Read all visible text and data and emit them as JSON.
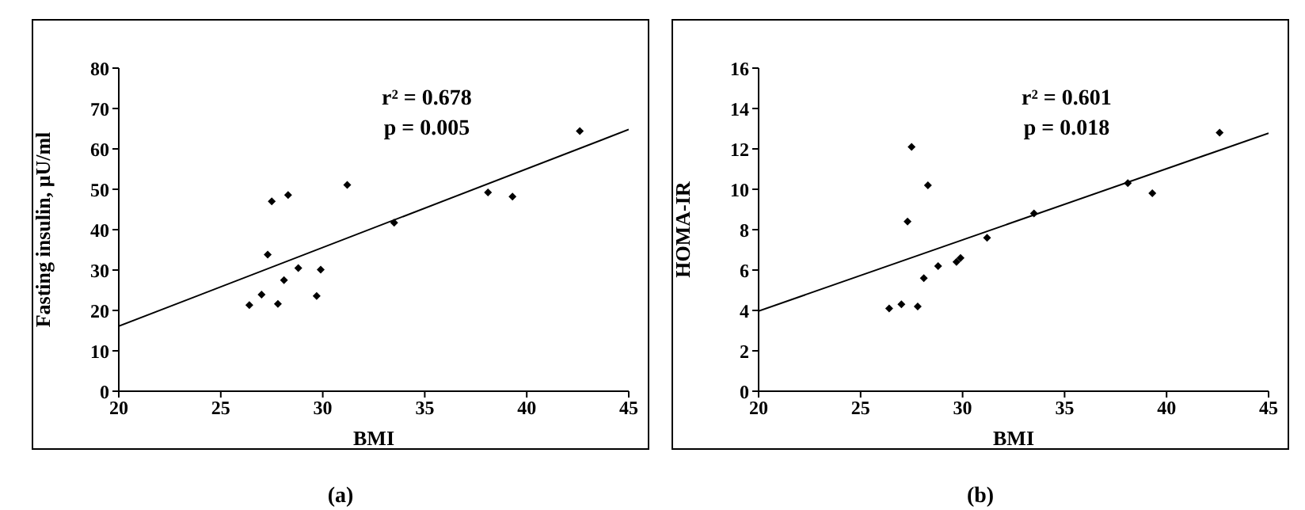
{
  "chart_data": [
    {
      "type": "scatter",
      "xlabel": "BMI",
      "ylabel": "Fasting insulin, μU/ml",
      "xlim": [
        20,
        45
      ],
      "xticks": [
        20,
        25,
        30,
        35,
        40,
        45
      ],
      "ylim": [
        0,
        80
      ],
      "yticks": [
        0,
        10,
        20,
        30,
        40,
        50,
        60,
        70,
        80
      ],
      "series": [
        {
          "marker": "diamond",
          "color": "#000000",
          "x": [
            26.4,
            27.0,
            27.3,
            27.5,
            27.8,
            28.1,
            28.3,
            28.8,
            29.7,
            29.9,
            31.2,
            33.5,
            38.1,
            39.3,
            42.6
          ],
          "values": [
            21.3,
            23.9,
            33.8,
            47.0,
            21.6,
            27.5,
            48.6,
            30.5,
            23.6,
            30.1,
            51.1,
            41.7,
            49.2,
            48.2,
            64.4
          ]
        },
        {
          "type": "line",
          "marker": "none",
          "color": "#000000",
          "x": [
            20,
            45
          ],
          "values": [
            16.1,
            64.8
          ]
        }
      ],
      "annotations": [
        "r² = 0.678",
        "p = 0.005",
        "(a)"
      ]
    },
    {
      "type": "scatter",
      "xlabel": "BMI",
      "ylabel": "HOMA-IR",
      "xlim": [
        20,
        45
      ],
      "xticks": [
        20,
        25,
        30,
        35,
        40,
        45
      ],
      "ylim": [
        0,
        16
      ],
      "yticks": [
        0,
        2,
        4,
        6,
        8,
        10,
        12,
        14,
        16
      ],
      "series": [
        {
          "marker": "diamond",
          "color": "#000000",
          "x": [
            26.4,
            27.0,
            27.3,
            27.5,
            27.8,
            28.1,
            28.3,
            28.8,
            29.7,
            29.9,
            31.2,
            33.5,
            38.1,
            39.3,
            42.6
          ],
          "values": [
            4.1,
            4.3,
            8.4,
            12.1,
            4.2,
            5.6,
            10.2,
            6.2,
            6.4,
            6.6,
            7.6,
            8.8,
            10.3,
            9.8,
            12.8
          ]
        },
        {
          "type": "line",
          "marker": "none",
          "color": "#000000",
          "x": [
            20,
            45
          ],
          "values": [
            3.97,
            12.78
          ]
        }
      ],
      "annotations": [
        "r² = 0.601",
        "p = 0.018",
        "(b)"
      ]
    }
  ]
}
